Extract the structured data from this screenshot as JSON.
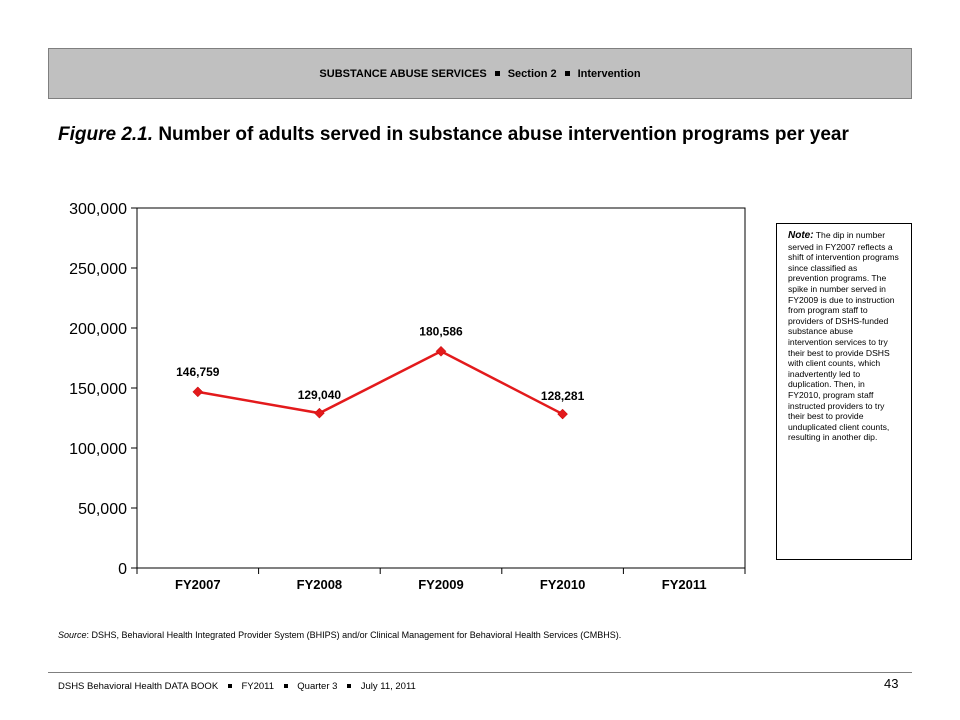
{
  "header": {
    "part1": "SUBSTANCE ABUSE SERVICES",
    "part2": "Section 2",
    "part3": "Intervention"
  },
  "figure": {
    "label": "Figure 2.1.",
    "title": "Number of adults served in substance abuse intervention programs per year"
  },
  "note": {
    "label": "Note:",
    "text": "The dip in number served in FY2007 reflects a shift of intervention programs since classified as prevention programs. The spike in number served in FY2009 is due to instruction from program staff to providers of DSHS-funded substance abuse intervention services to try their best to provide DSHS with client counts, which inadvertently led to duplication. Then, in FY2010, program staff instructed providers to try their best to provide unduplicated client counts, resulting in another dip."
  },
  "source": {
    "label": "Source",
    "text": ": DSHS, Behavioral Health Integrated Provider System (BHIPS) and/or Clinical Management for Behavioral Health Services (CMBHS)."
  },
  "footer": {
    "part1": "DSHS Behavioral Health DATA BOOK",
    "part2": "FY2011",
    "part3": "Quarter 3",
    "part4": "July 11, 2011",
    "page_number": "43"
  },
  "chart_data": {
    "type": "line",
    "categories": [
      "FY2007",
      "FY2008",
      "FY2009",
      "FY2010",
      "FY2011"
    ],
    "series": [
      {
        "values": [
          146759,
          129040,
          180586,
          128281,
          null
        ],
        "color": "#e31a1c"
      }
    ],
    "data_labels": [
      "146,759",
      "129,040",
      "180,586",
      "128,281",
      ""
    ],
    "ylim": [
      0,
      300000
    ],
    "yticks": [
      0,
      50000,
      100000,
      150000,
      200000,
      250000,
      300000
    ],
    "ytick_labels": [
      "0",
      "50,000",
      "100,000",
      "150,000",
      "200,000",
      "250,000",
      "300,000"
    ],
    "title": "",
    "xlabel": "",
    "ylabel": "",
    "grid": false,
    "legend": "none"
  }
}
